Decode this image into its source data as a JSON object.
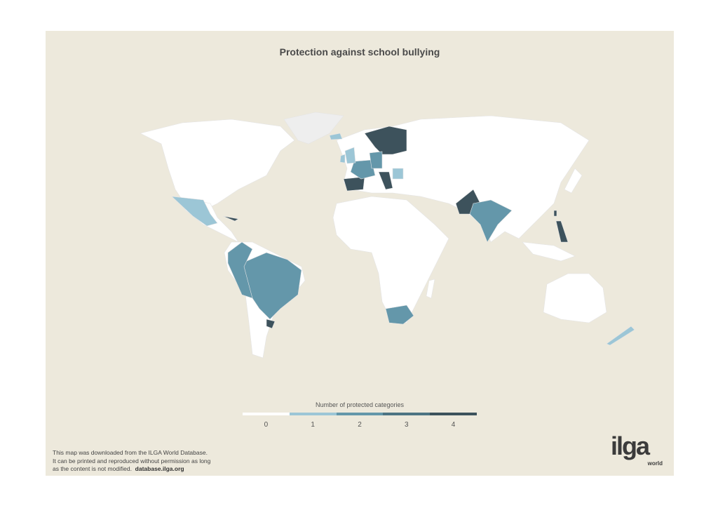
{
  "title": "Protection against school bullying",
  "colors": {
    "background": "#ede9dc",
    "land_no_data": "#eeeeee",
    "scale": [
      "#ffffff",
      "#9cc6d6",
      "#6497aa",
      "#4d7483",
      "#3d525c"
    ]
  },
  "legend": {
    "title": "Number of protected categories",
    "labels": [
      "0",
      "1",
      "2",
      "3",
      "4"
    ]
  },
  "regions": [
    {
      "name": "Norway, Sweden, Finland",
      "level": 4
    },
    {
      "name": "Spain, Portugal",
      "level": 4
    },
    {
      "name": "Balkans",
      "level": 4
    },
    {
      "name": "Pakistan",
      "level": 4
    },
    {
      "name": "Philippines",
      "level": 4
    },
    {
      "name": "Taiwan",
      "level": 4
    },
    {
      "name": "Cuba",
      "level": 4
    },
    {
      "name": "Uruguay",
      "level": 4
    },
    {
      "name": "France",
      "level": 2
    },
    {
      "name": "Germany",
      "level": 2
    },
    {
      "name": "Brazil",
      "level": 2
    },
    {
      "name": "Colombia, Ecuador, Peru, Bolivia",
      "level": 2
    },
    {
      "name": "India",
      "level": 2
    },
    {
      "name": "South Africa",
      "level": 2
    },
    {
      "name": "United Kingdom",
      "level": 1
    },
    {
      "name": "Ireland",
      "level": 1
    },
    {
      "name": "Iceland",
      "level": 1
    },
    {
      "name": "Mexico",
      "level": 1
    },
    {
      "name": "Romania",
      "level": 1
    },
    {
      "name": "New Zealand",
      "level": 1
    }
  ],
  "disclaimer": {
    "line1": "This map was downloaded from the ILGA World Database.",
    "line2": "It can be printed and reproduced without permission as long",
    "line3": "as the content is not modified.",
    "link": "database.ilga.org"
  },
  "logo": {
    "main": "ilga",
    "sub": "world"
  }
}
